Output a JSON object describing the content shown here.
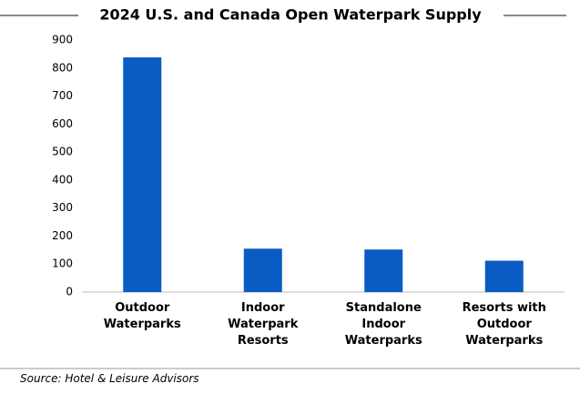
{
  "chart_data": {
    "type": "bar",
    "title": "2024 U.S. and Canada Open Waterpark Supply",
    "categories": [
      "Outdoor\nWaterparks",
      "Indoor\nWaterpark\nResorts",
      "Standalone\nIndoor\nWaterparks",
      "Resorts with\nOutdoor\nWaterparks"
    ],
    "values": [
      838,
      155,
      152,
      112
    ],
    "color": "#0a5bc4",
    "ylim": [
      0,
      900
    ],
    "yticks": [
      0,
      100,
      200,
      300,
      400,
      500,
      600,
      700,
      800,
      900
    ],
    "grid": false,
    "source": "Source: Hotel & Leisure Advisors"
  }
}
